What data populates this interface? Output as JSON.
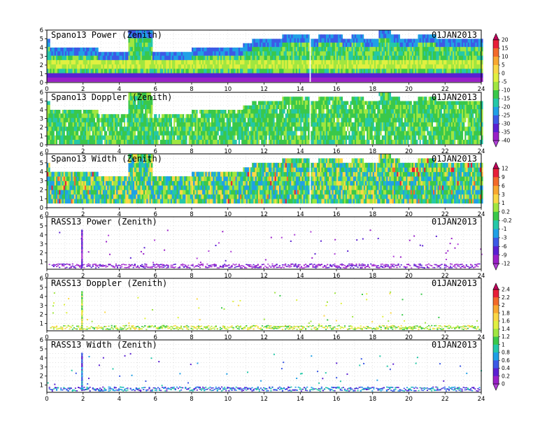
{
  "chart_data": [
    {
      "type": "heatmap",
      "title": "Spano13 Power (Zenith)",
      "date": "01JAN2013",
      "x_ticks": [
        "0",
        "2",
        "4",
        "6",
        "8",
        "10",
        "12",
        "14",
        "16",
        "18",
        "20",
        "22",
        "24"
      ],
      "y_ticks": [
        "0",
        "1",
        "2",
        "3",
        "4",
        "5",
        "6"
      ],
      "xlim": [
        0,
        24
      ],
      "ylim": [
        0,
        6
      ],
      "colorbar_id": "cb1",
      "description_values": "receiver power in dB; bulk -15 to -25 (green/cyan), near-surface 0.4-1 km -35 to -40 (blue/purple), layer near 2 km -10 (yellow), top of echo 4-5.8 km -30 (blue)"
    },
    {
      "type": "heatmap",
      "title": "Spano13 Doppler (Zenith)",
      "date": "01JAN2013",
      "x_ticks": [
        "0",
        "2",
        "4",
        "6",
        "8",
        "10",
        "12",
        "14",
        "16",
        "18",
        "20",
        "22",
        "24"
      ],
      "y_ticks": [
        "0",
        "1",
        "2",
        "3",
        "4",
        "5",
        "6"
      ],
      "xlim": [
        0,
        24
      ],
      "ylim": [
        0,
        6
      ],
      "colorbar_id": "cb1",
      "description_values": "mostly green (~ -15 to -20) throughout; echo top same envelope as power"
    },
    {
      "type": "heatmap",
      "title": "Spano13 Width (Zenith)",
      "date": "01JAN2013",
      "x_ticks": [
        "0",
        "2",
        "4",
        "6",
        "8",
        "10",
        "12",
        "14",
        "16",
        "18",
        "20",
        "22",
        "24"
      ],
      "y_ticks": [
        "0",
        "1",
        "2",
        "3",
        "4",
        "5",
        "6"
      ],
      "xlim": [
        0,
        24
      ],
      "ylim": [
        0,
        6
      ],
      "colorbar_id": "cb2",
      "description_values": "green/cyan (~0.2 to -1) background with yellow/red (3-12) speckles, especially 0-2 h below 3 km and 11-14 h near 2 km"
    },
    {
      "type": "scatter",
      "title": "RASS13 Power (Zenith)",
      "date": "01JAN2013",
      "x_ticks": [
        "0",
        "2",
        "4",
        "6",
        "8",
        "10",
        "12",
        "14",
        "16",
        "18",
        "20",
        "22",
        "24"
      ],
      "y_ticks": [
        "1",
        "2",
        "3",
        "4",
        "5",
        "6"
      ],
      "xlim": [
        0,
        24
      ],
      "ylim": [
        0.2,
        6
      ],
      "colorbar_id": "cb2",
      "description_values": "purple points (~ -12) forming a dense band 0.4-0.8 km over all hours, sparse points up to 4.5 km, vertical column at 1.9 h"
    },
    {
      "type": "scatter",
      "title": "RASS13 Doppler (Zenith)",
      "date": "01JAN2013",
      "x_ticks": [
        "0",
        "2",
        "4",
        "6",
        "8",
        "10",
        "12",
        "14",
        "16",
        "18",
        "20",
        "22",
        "24"
      ],
      "y_ticks": [
        "1",
        "2",
        "3",
        "4",
        "5",
        "6"
      ],
      "xlim": [
        0,
        24
      ],
      "ylim": [
        0.2,
        6
      ],
      "colorbar_id": "cb3",
      "description_values": "yellow-green points (1.2-1.8) in band 0.4-0.8 km over all hours, sparse higher points, vertical column at 1.9 h"
    },
    {
      "type": "scatter",
      "title": "RASS13 Width (Zenith)",
      "date": "01JAN2013",
      "x_ticks": [
        "0",
        "2",
        "4",
        "6",
        "8",
        "10",
        "12",
        "14",
        "16",
        "18",
        "20",
        "22",
        "24"
      ],
      "y_ticks": [
        "1",
        "2",
        "3",
        "4",
        "5",
        "6"
      ],
      "xlim": [
        0,
        24
      ],
      "ylim": [
        0.2,
        6
      ],
      "colorbar_id": "cb3",
      "description_values": "blue/cyan points (0.4-0.8) in band 0.4-0.8 km over all hours, sparse higher points, vertical column at 1.9 h"
    }
  ],
  "colorbars": {
    "cb1": {
      "labels": [
        "20",
        "15",
        "10",
        "5",
        "0",
        "-5",
        "-10",
        "-15",
        "-20",
        "-25",
        "-30",
        "-35",
        "-40"
      ],
      "colors": [
        "#c0005a",
        "#e8203a",
        "#f36a2a",
        "#f9a830",
        "#fad846",
        "#e0f040",
        "#a0e640",
        "#3ac84a",
        "#25c8a8",
        "#20a0e6",
        "#3c5ae6",
        "#5a20d2",
        "#9a20c8",
        "#b040d8"
      ]
    },
    "cb2": {
      "labels": [
        "12",
        "9",
        "6",
        "3",
        "1",
        "0.2",
        "-0.2",
        "-1",
        "-3",
        "-6",
        "-9",
        "-12"
      ],
      "colors": [
        "#c0005a",
        "#e8203a",
        "#f36a2a",
        "#f9a830",
        "#fad846",
        "#a0e640",
        "#3ac84a",
        "#25c8a8",
        "#20a0e6",
        "#3c5ae6",
        "#5a20d2",
        "#9a20c8",
        "#b040d8"
      ]
    },
    "cb3": {
      "labels": [
        "2.4",
        "2.2",
        "2",
        "1.8",
        "1.6",
        "1.4",
        "1.2",
        "1",
        "0.8",
        "0.6",
        "0.4",
        "0.2",
        "0"
      ],
      "colors": [
        "#c0005a",
        "#e8203a",
        "#f36a2a",
        "#f9a830",
        "#fad846",
        "#e0f040",
        "#a0e640",
        "#3ac84a",
        "#25c8a8",
        "#20a0e6",
        "#3c5ae6",
        "#5a20d2",
        "#9a20c8",
        "#b040d8"
      ]
    }
  }
}
